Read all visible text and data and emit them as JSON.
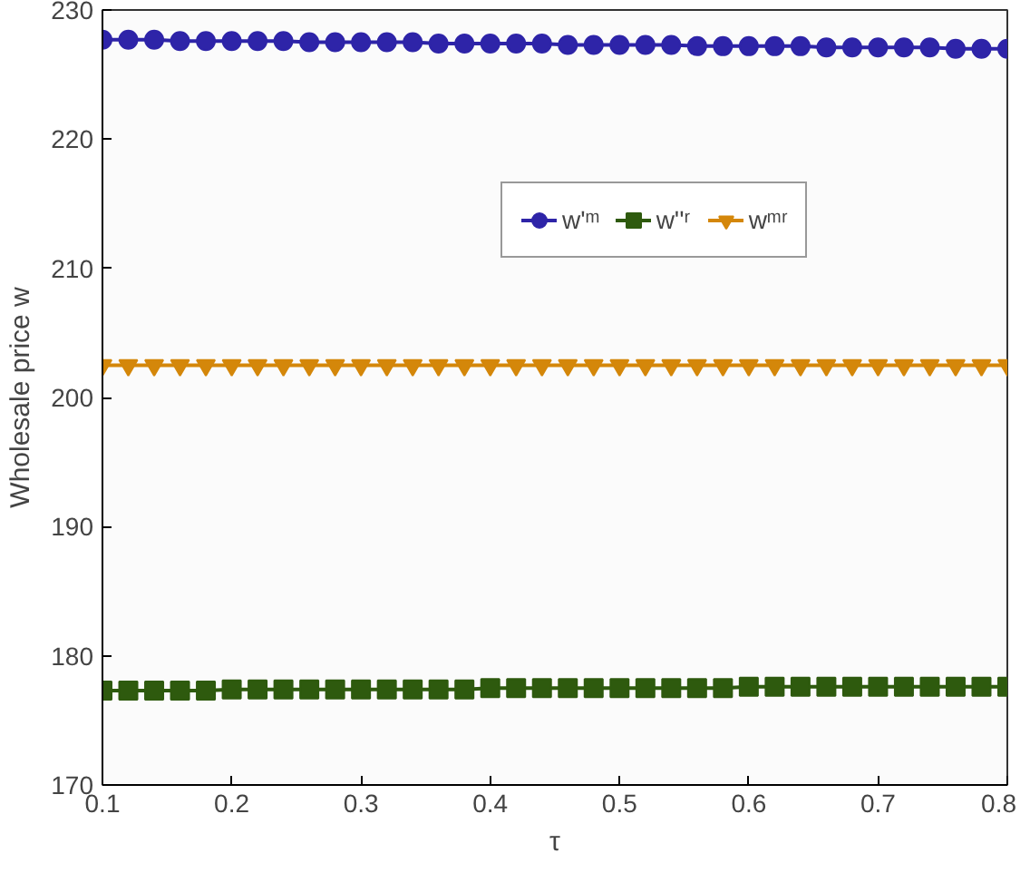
{
  "chart_data": {
    "type": "line",
    "xlabel": "τ",
    "ylabel": "Wholesale price w",
    "x": [
      0.1,
      0.12,
      0.14,
      0.16,
      0.18,
      0.2,
      0.22,
      0.24,
      0.26,
      0.28,
      0.3,
      0.32,
      0.34,
      0.36,
      0.38,
      0.4,
      0.42,
      0.44,
      0.46,
      0.48,
      0.5,
      0.52,
      0.54,
      0.56,
      0.58,
      0.6,
      0.62,
      0.64,
      0.66,
      0.68,
      0.7,
      0.72,
      0.74,
      0.76,
      0.78,
      0.8
    ],
    "series": [
      {
        "name": "w'ᵐ",
        "color": "#2e24a8",
        "marker": "circle",
        "values": [
          227.7,
          227.7,
          227.7,
          227.6,
          227.6,
          227.6,
          227.6,
          227.6,
          227.5,
          227.5,
          227.5,
          227.5,
          227.5,
          227.4,
          227.4,
          227.4,
          227.4,
          227.4,
          227.3,
          227.3,
          227.3,
          227.3,
          227.3,
          227.2,
          227.2,
          227.2,
          227.2,
          227.2,
          227.1,
          227.1,
          227.1,
          227.1,
          227.1,
          227.0,
          227.0,
          227.0
        ]
      },
      {
        "name": "w''ʳ",
        "color": "#2e5a0e",
        "marker": "square",
        "values": [
          177.3,
          177.3,
          177.3,
          177.3,
          177.3,
          177.4,
          177.4,
          177.4,
          177.4,
          177.4,
          177.4,
          177.4,
          177.4,
          177.4,
          177.4,
          177.5,
          177.5,
          177.5,
          177.5,
          177.5,
          177.5,
          177.5,
          177.5,
          177.5,
          177.5,
          177.6,
          177.6,
          177.6,
          177.6,
          177.6,
          177.6,
          177.6,
          177.6,
          177.6,
          177.6,
          177.6
        ]
      },
      {
        "name": "wᵐʳ",
        "color": "#d4870a",
        "marker": "triangle",
        "values": [
          202.5,
          202.5,
          202.5,
          202.5,
          202.5,
          202.5,
          202.5,
          202.5,
          202.5,
          202.5,
          202.5,
          202.5,
          202.5,
          202.5,
          202.5,
          202.5,
          202.5,
          202.5,
          202.5,
          202.5,
          202.5,
          202.5,
          202.5,
          202.5,
          202.5,
          202.5,
          202.5,
          202.5,
          202.5,
          202.5,
          202.5,
          202.5,
          202.5,
          202.5,
          202.5,
          202.5
        ]
      }
    ],
    "xlim": [
      0.1,
      0.8
    ],
    "xticks": [
      0.1,
      0.2,
      0.3,
      0.4,
      0.5,
      0.6,
      0.7,
      0.8
    ],
    "ylim": [
      170,
      230
    ],
    "yticks": [
      170,
      180,
      190,
      200,
      210,
      220,
      230
    ],
    "grid": false,
    "legend": "top right"
  }
}
